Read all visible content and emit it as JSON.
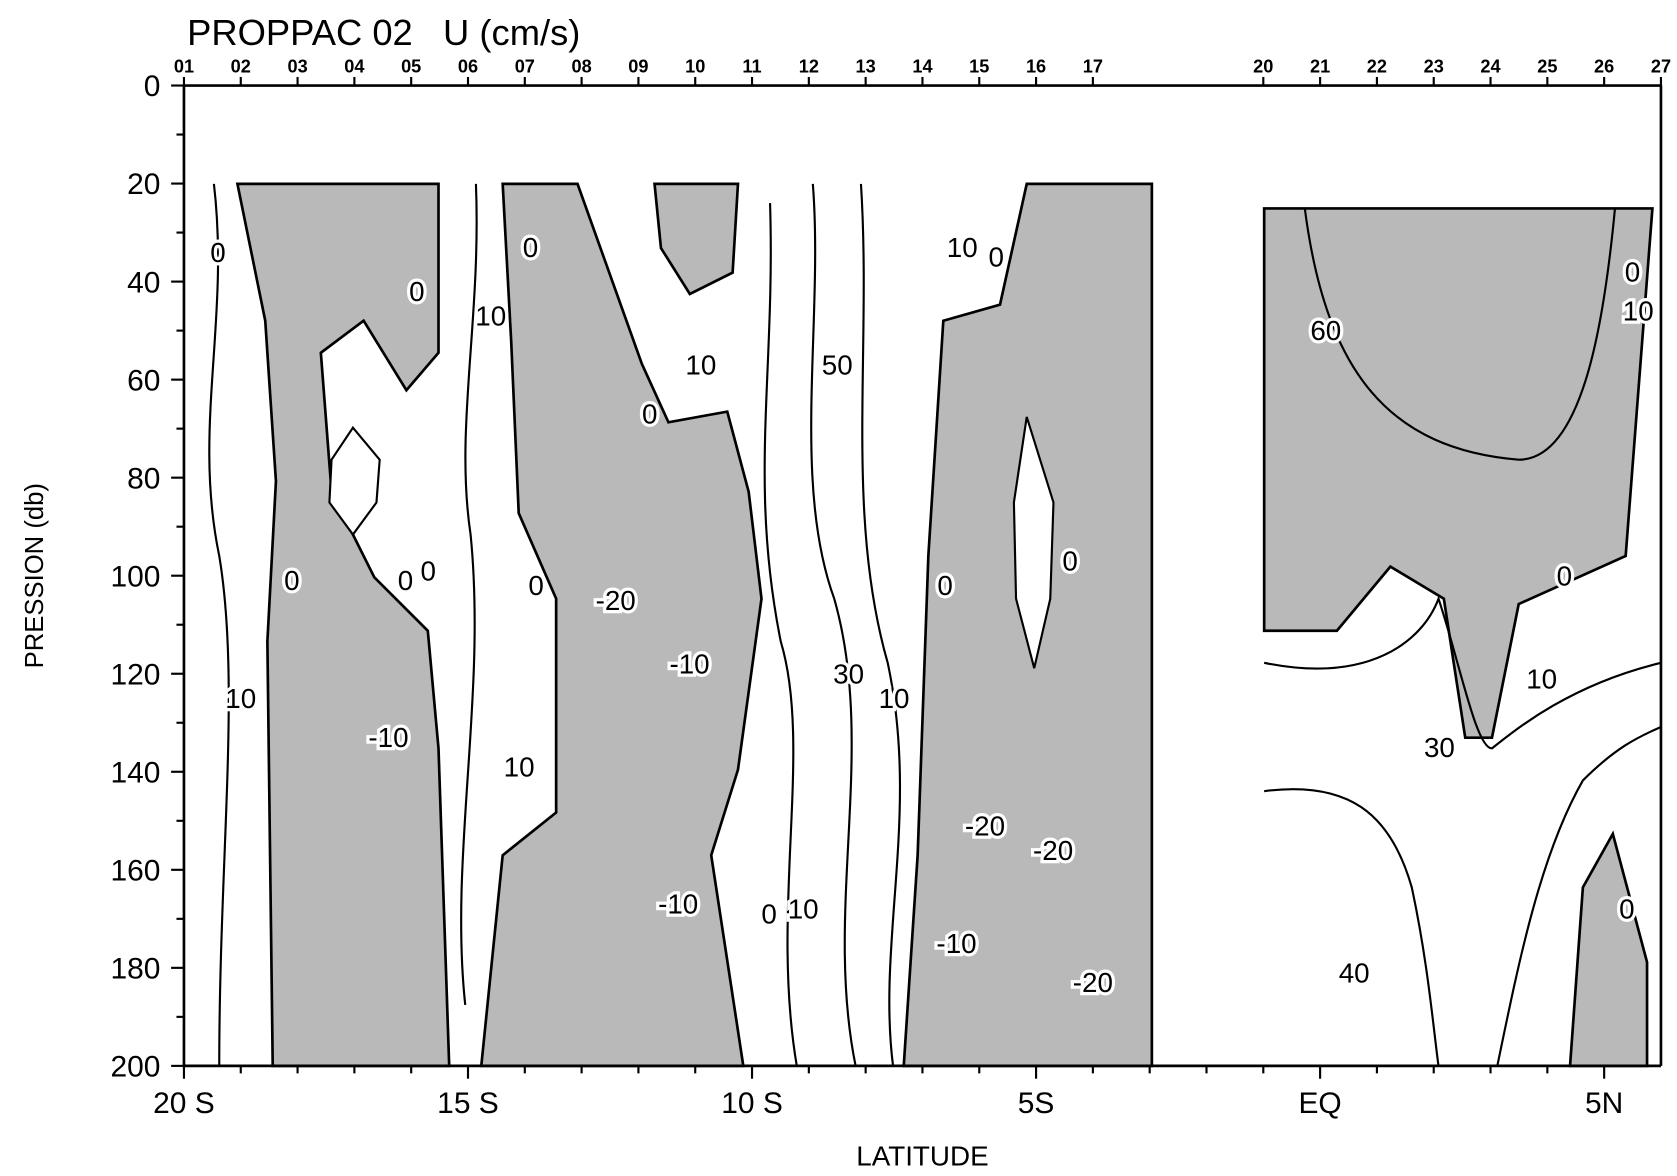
{
  "chart_data": {
    "type": "contour",
    "title": "PROPPAC 02   U (cm/s)",
    "x_label": "LATITUDE",
    "y_label": "PRESSION (db)",
    "xlim": [
      -20,
      6
    ],
    "ylim": [
      0,
      200
    ],
    "y_inverted": true,
    "xticks": [
      {
        "value": -20,
        "label": "20 S"
      },
      {
        "value": -15,
        "label": "15 S"
      },
      {
        "value": -10,
        "label": "10 S"
      },
      {
        "value": -5,
        "label": "5S"
      },
      {
        "value": 0,
        "label": "EQ"
      },
      {
        "value": 5,
        "label": "5N"
      }
    ],
    "xminorticks": [
      -19,
      -18,
      -17,
      -16,
      -14,
      -13,
      -12,
      -11,
      -9,
      -8,
      -7,
      -6,
      -4,
      -3,
      -2,
      -1,
      1,
      2,
      3,
      4
    ],
    "yticks": [
      0,
      20,
      40,
      60,
      80,
      100,
      120,
      140,
      160,
      180,
      200
    ],
    "yminorticks": [
      10,
      30,
      50,
      70,
      90,
      110,
      130,
      150,
      170,
      190
    ],
    "stations": {
      "labels": [
        "01",
        "02",
        "03",
        "04",
        "05",
        "06",
        "07",
        "08",
        "09",
        "10",
        "11",
        "12",
        "13",
        "14",
        "15",
        "16",
        "17",
        "20",
        "21",
        "22",
        "23",
        "24",
        "25",
        "26",
        "27"
      ],
      "lat": [
        -20,
        -19,
        -18,
        -17,
        -16,
        -15,
        -14,
        -13,
        -12,
        -11,
        -10,
        -9,
        -8,
        -7,
        -6,
        -5,
        -4,
        -1,
        0,
        1,
        2,
        3,
        4,
        5,
        6
      ]
    },
    "contour_labels": [
      {
        "text": "0",
        "lat": -19.4,
        "pressure": 34
      },
      {
        "text": "0",
        "lat": -15.9,
        "pressure": 42
      },
      {
        "text": "10",
        "lat": -14.6,
        "pressure": 47
      },
      {
        "text": "0",
        "lat": -13.9,
        "pressure": 33
      },
      {
        "text": "10",
        "lat": -10.9,
        "pressure": 57
      },
      {
        "text": "0",
        "lat": -11.8,
        "pressure": 67
      },
      {
        "text": "50",
        "lat": -8.5,
        "pressure": 57
      },
      {
        "text": "10",
        "lat": -6.3,
        "pressure": 33
      },
      {
        "text": "0",
        "lat": -5.7,
        "pressure": 35
      },
      {
        "text": "60",
        "lat": 0.1,
        "pressure": 50
      },
      {
        "text": "0",
        "lat": 5.5,
        "pressure": 38
      },
      {
        "text": "10",
        "lat": 5.6,
        "pressure": 46
      },
      {
        "text": "0",
        "lat": -18.1,
        "pressure": 101
      },
      {
        "text": "0",
        "lat": -16.1,
        "pressure": 101
      },
      {
        "text": "0",
        "lat": -15.7,
        "pressure": 99
      },
      {
        "text": "0",
        "lat": -13.8,
        "pressure": 102
      },
      {
        "text": "-20",
        "lat": -12.4,
        "pressure": 105
      },
      {
        "text": "-10",
        "lat": -11.1,
        "pressure": 118
      },
      {
        "text": "30",
        "lat": -8.3,
        "pressure": 120
      },
      {
        "text": "10",
        "lat": -7.5,
        "pressure": 125
      },
      {
        "text": "0",
        "lat": -6.6,
        "pressure": 102
      },
      {
        "text": "0",
        "lat": -4.4,
        "pressure": 97
      },
      {
        "text": "0",
        "lat": 4.3,
        "pressure": 100
      },
      {
        "text": "10",
        "lat": 3.9,
        "pressure": 121
      },
      {
        "text": "30",
        "lat": 2.1,
        "pressure": 135
      },
      {
        "text": "10",
        "lat": -19.0,
        "pressure": 125
      },
      {
        "text": "-10",
        "lat": -16.4,
        "pressure": 133
      },
      {
        "text": "10",
        "lat": -14.1,
        "pressure": 139
      },
      {
        "text": "-20",
        "lat": -5.9,
        "pressure": 151
      },
      {
        "text": "-20",
        "lat": -4.7,
        "pressure": 156
      },
      {
        "text": "-10",
        "lat": -11.3,
        "pressure": 167
      },
      {
        "text": "0",
        "lat": -9.7,
        "pressure": 169
      },
      {
        "text": "10",
        "lat": -9.1,
        "pressure": 168
      },
      {
        "text": "-10",
        "lat": -6.4,
        "pressure": 175
      },
      {
        "text": "-20",
        "lat": -4.0,
        "pressure": 183
      },
      {
        "text": "40",
        "lat": 0.6,
        "pressure": 181
      },
      {
        "text": "0",
        "lat": 5.4,
        "pressure": 168
      }
    ]
  }
}
